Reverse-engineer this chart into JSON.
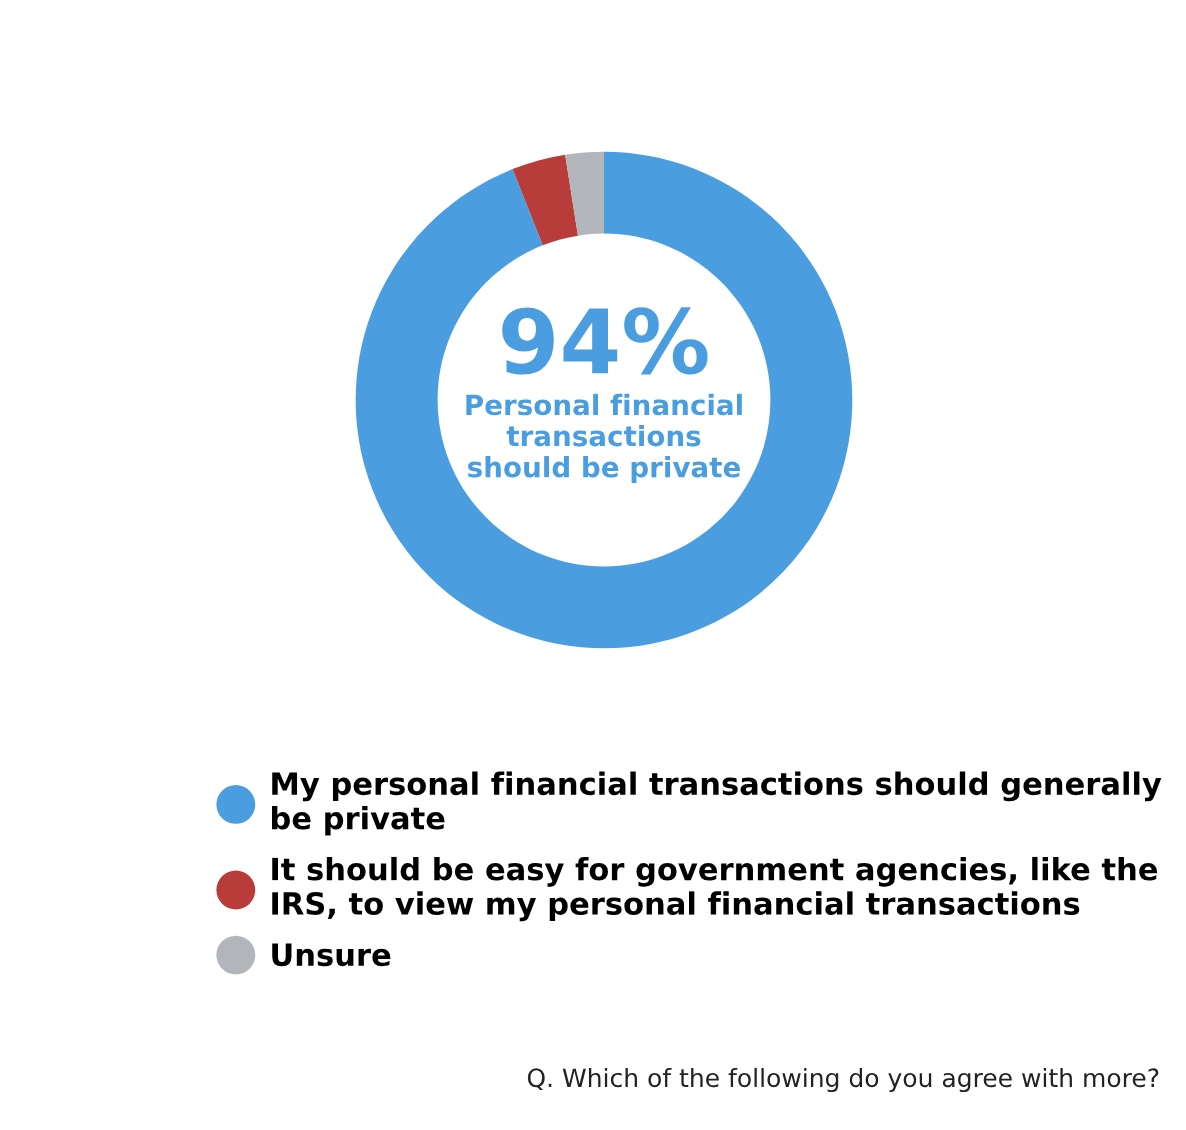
{
  "chart_data": {
    "type": "donut",
    "categories": [
      "My personal financial transactions should generally\nbe private",
      "It should be easy for government agencies, like the\nIRS, to view my personal financial transactions",
      "Unsure"
    ],
    "values": [
      94,
      3.5,
      2.5
    ],
    "colors": [
      "#4a9ee0",
      "#b83c3a",
      "#b2b5ba"
    ],
    "legend": "bottom",
    "annotations": [
      "94%",
      "Personal financial\ntransactions\nshould be private",
      "Q. Which of the following do you agree with more?"
    ]
  }
}
